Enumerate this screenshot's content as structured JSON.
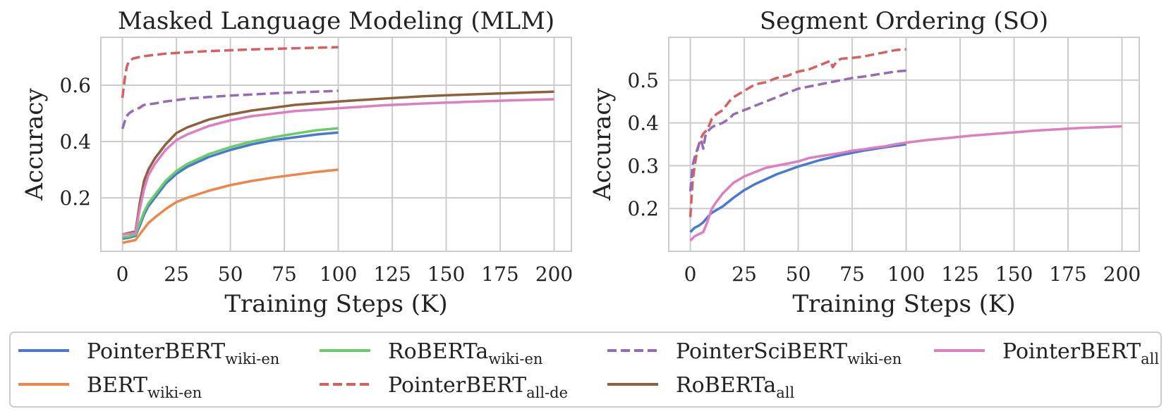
{
  "chart_data": [
    {
      "type": "line",
      "title": "Masked Language Modeling (MLM)",
      "xlabel": "Training Steps (K)",
      "ylabel": "Accuracy",
      "xlim": [
        -10,
        208
      ],
      "ylim": [
        0.01,
        0.77
      ],
      "xticks": [
        "0",
        "25",
        "50",
        "75",
        "100",
        "125",
        "150",
        "175",
        "200"
      ],
      "yticks": [
        "0.2",
        "0.4",
        "0.6"
      ],
      "grid": true,
      "series": [
        {
          "name": "PointerBERT",
          "sub": "wiki-en",
          "color": "#4878d0",
          "dash": false,
          "x": [
            0,
            3,
            6,
            8,
            10,
            12,
            15,
            20,
            25,
            30,
            40,
            50,
            60,
            70,
            80,
            90,
            100
          ],
          "y": [
            0.055,
            0.058,
            0.065,
            0.1,
            0.14,
            0.17,
            0.2,
            0.25,
            0.285,
            0.31,
            0.345,
            0.37,
            0.39,
            0.405,
            0.415,
            0.425,
            0.432
          ]
        },
        {
          "name": "BERT",
          "sub": "wiki-en",
          "color": "#ee854a",
          "dash": false,
          "x": [
            0,
            3,
            6,
            8,
            10,
            12,
            15,
            20,
            25,
            30,
            40,
            50,
            60,
            70,
            80,
            90,
            100
          ],
          "y": [
            0.04,
            0.045,
            0.05,
            0.07,
            0.09,
            0.11,
            0.13,
            0.16,
            0.185,
            0.2,
            0.225,
            0.245,
            0.26,
            0.272,
            0.282,
            0.292,
            0.3
          ]
        },
        {
          "name": "RoBERTa",
          "sub": "wiki-en",
          "color": "#6acc64",
          "dash": false,
          "x": [
            0,
            3,
            6,
            8,
            10,
            12,
            15,
            20,
            25,
            30,
            40,
            50,
            60,
            70,
            80,
            90,
            100
          ],
          "y": [
            0.06,
            0.062,
            0.07,
            0.11,
            0.15,
            0.18,
            0.21,
            0.26,
            0.295,
            0.32,
            0.355,
            0.38,
            0.4,
            0.415,
            0.428,
            0.44,
            0.447
          ]
        },
        {
          "name": "PointerBERT",
          "sub": "all-de",
          "color": "#d65f5f",
          "dash": true,
          "x": [
            0,
            1,
            2,
            3,
            5,
            8,
            10,
            20,
            30,
            40,
            50,
            60,
            70,
            80,
            90,
            100
          ],
          "y": [
            0.555,
            0.62,
            0.665,
            0.685,
            0.695,
            0.7,
            0.703,
            0.712,
            0.717,
            0.721,
            0.724,
            0.727,
            0.729,
            0.731,
            0.733,
            0.735
          ]
        },
        {
          "name": "PointerSciBERT",
          "sub": "wiki-en",
          "color": "#956cb4",
          "dash": true,
          "x": [
            0,
            1,
            2,
            3,
            5,
            8,
            10,
            15,
            20,
            30,
            40,
            50,
            60,
            70,
            80,
            90,
            100
          ],
          "y": [
            0.445,
            0.47,
            0.49,
            0.5,
            0.51,
            0.52,
            0.53,
            0.535,
            0.542,
            0.552,
            0.558,
            0.563,
            0.567,
            0.571,
            0.574,
            0.577,
            0.58
          ]
        },
        {
          "name": "RoBERTa",
          "sub": "all",
          "color": "#8c613c",
          "dash": false,
          "x": [
            0,
            3,
            6,
            8,
            10,
            12,
            15,
            20,
            25,
            30,
            40,
            50,
            60,
            80,
            100,
            120,
            140,
            160,
            180,
            200
          ],
          "y": [
            0.07,
            0.075,
            0.08,
            0.18,
            0.26,
            0.3,
            0.34,
            0.39,
            0.43,
            0.45,
            0.478,
            0.496,
            0.51,
            0.53,
            0.542,
            0.552,
            0.561,
            0.567,
            0.572,
            0.577
          ]
        },
        {
          "name": "PointerBERT",
          "sub": "all",
          "color": "#dc7ec0",
          "dash": false,
          "x": [
            0,
            3,
            6,
            8,
            10,
            12,
            15,
            20,
            25,
            30,
            40,
            50,
            60,
            80,
            100,
            120,
            140,
            160,
            180,
            200
          ],
          "y": [
            0.07,
            0.072,
            0.075,
            0.16,
            0.23,
            0.28,
            0.32,
            0.37,
            0.405,
            0.425,
            0.455,
            0.475,
            0.49,
            0.508,
            0.518,
            0.528,
            0.535,
            0.541,
            0.546,
            0.55
          ]
        }
      ]
    },
    {
      "type": "line",
      "title": "Segment Ordering (SO)",
      "xlabel": "Training Steps (K)",
      "ylabel": "Accuracy",
      "xlim": [
        -10,
        208
      ],
      "ylim": [
        0.1,
        0.6
      ],
      "xticks": [
        "0",
        "25",
        "50",
        "75",
        "100",
        "125",
        "150",
        "175",
        "200"
      ],
      "yticks": [
        "0.2",
        "0.3",
        "0.4",
        "0.5"
      ],
      "grid": true,
      "series": [
        {
          "name": "PointerBERT",
          "sub": "wiki-en",
          "color": "#4878d0",
          "dash": false,
          "x": [
            0,
            2,
            4,
            6,
            8,
            10,
            15,
            20,
            25,
            30,
            40,
            50,
            60,
            70,
            80,
            90,
            100
          ],
          "y": [
            0.145,
            0.155,
            0.16,
            0.168,
            0.18,
            0.19,
            0.205,
            0.225,
            0.243,
            0.257,
            0.28,
            0.298,
            0.313,
            0.325,
            0.335,
            0.343,
            0.35
          ]
        },
        {
          "name": "PointerBERT",
          "sub": "all-de",
          "color": "#d65f5f",
          "dash": true,
          "x": [
            0,
            1,
            2,
            3,
            4,
            5,
            6,
            8,
            10,
            12,
            15,
            18,
            20,
            25,
            30,
            35,
            40,
            45,
            50,
            55,
            60,
            65,
            66,
            68,
            70,
            75,
            80,
            85,
            90,
            95,
            100
          ],
          "y": [
            0.18,
            0.26,
            0.3,
            0.33,
            0.35,
            0.365,
            0.375,
            0.385,
            0.41,
            0.42,
            0.43,
            0.45,
            0.46,
            0.475,
            0.49,
            0.495,
            0.505,
            0.51,
            0.52,
            0.525,
            0.535,
            0.545,
            0.53,
            0.545,
            0.55,
            0.552,
            0.555,
            0.56,
            0.565,
            0.57,
            0.572
          ]
        },
        {
          "name": "PointerSciBERT",
          "sub": "wiki-en",
          "color": "#956cb4",
          "dash": true,
          "x": [
            0,
            1,
            2,
            3,
            4,
            5,
            6,
            7,
            8,
            9,
            10,
            12,
            15,
            18,
            20,
            25,
            30,
            35,
            40,
            45,
            50,
            55,
            60,
            65,
            70,
            75,
            80,
            85,
            90,
            95,
            100
          ],
          "y": [
            0.24,
            0.3,
            0.32,
            0.335,
            0.35,
            0.36,
            0.34,
            0.37,
            0.38,
            0.385,
            0.39,
            0.395,
            0.4,
            0.41,
            0.42,
            0.43,
            0.44,
            0.45,
            0.46,
            0.47,
            0.48,
            0.485,
            0.49,
            0.495,
            0.5,
            0.505,
            0.508,
            0.512,
            0.516,
            0.52,
            0.522
          ]
        },
        {
          "name": "PointerBERT",
          "sub": "all",
          "color": "#dc7ec0",
          "dash": false,
          "x": [
            0,
            2,
            4,
            6,
            8,
            10,
            12,
            15,
            18,
            20,
            25,
            30,
            35,
            40,
            45,
            50,
            55,
            60,
            65,
            70,
            75,
            80,
            85,
            90,
            95,
            100,
            110,
            120,
            130,
            140,
            150,
            160,
            170,
            180,
            190,
            200
          ],
          "y": [
            0.125,
            0.135,
            0.14,
            0.145,
            0.17,
            0.2,
            0.215,
            0.235,
            0.25,
            0.26,
            0.275,
            0.285,
            0.295,
            0.3,
            0.305,
            0.31,
            0.318,
            0.322,
            0.326,
            0.33,
            0.335,
            0.338,
            0.342,
            0.345,
            0.35,
            0.354,
            0.36,
            0.365,
            0.37,
            0.374,
            0.378,
            0.382,
            0.385,
            0.388,
            0.39,
            0.392
          ]
        }
      ]
    }
  ],
  "legend": {
    "placement": "bottom",
    "items": [
      {
        "name": "PointerBERT",
        "sub": "wiki-en",
        "color": "#4878d0",
        "dash": false
      },
      {
        "name": "BERT",
        "sub": "wiki-en",
        "color": "#ee854a",
        "dash": false
      },
      {
        "name": "RoBERTa",
        "sub": "wiki-en",
        "color": "#6acc64",
        "dash": false
      },
      {
        "name": "PointerBERT",
        "sub": "all-de",
        "color": "#d65f5f",
        "dash": true
      },
      {
        "name": "PointerSciBERT",
        "sub": "wiki-en",
        "color": "#956cb4",
        "dash": true
      },
      {
        "name": "RoBERTa",
        "sub": "all",
        "color": "#8c613c",
        "dash": false
      },
      {
        "name": "PointerBERT",
        "sub": "all",
        "color": "#dc7ec0",
        "dash": false
      }
    ]
  }
}
